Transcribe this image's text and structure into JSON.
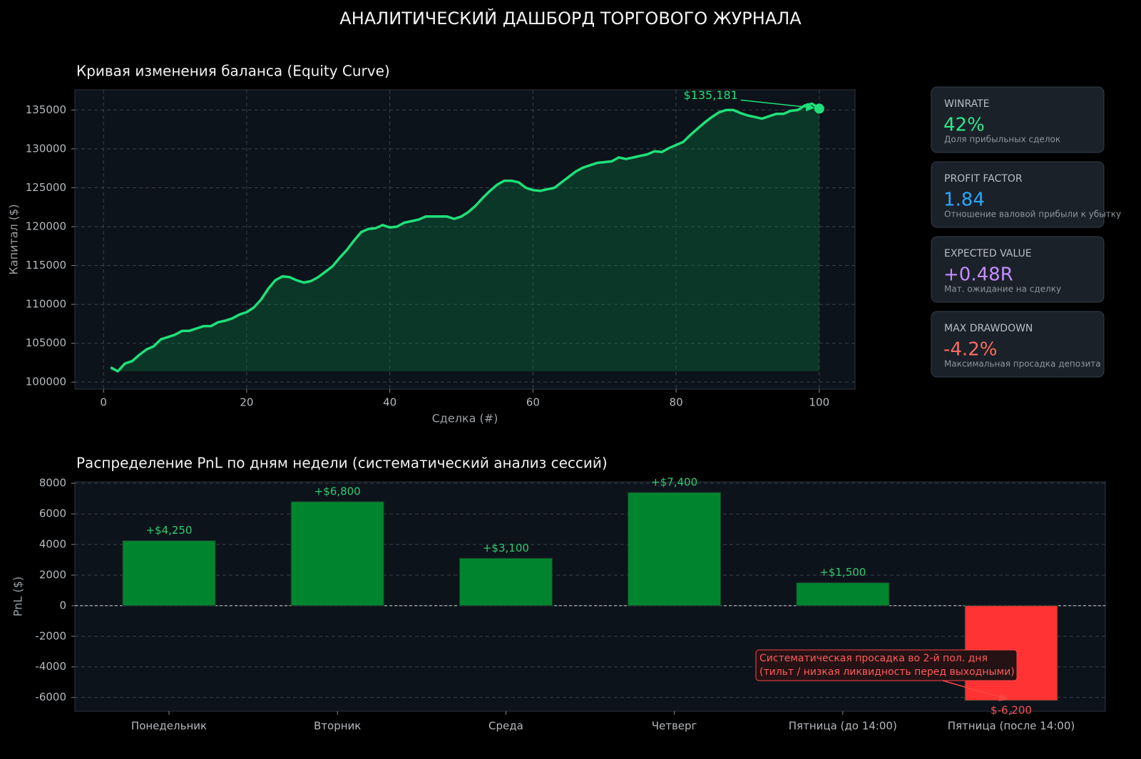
{
  "title": "АНАЛИТИЧЕСКИЙ ДАШБОРД ТОРГОВОГО ЖУРНАЛА",
  "cards": [
    {
      "label": "WINRATE",
      "value": "42%",
      "description": "Доля прибыльных сделок",
      "color": "#2ee88a"
    },
    {
      "label": "PROFIT FACTOR",
      "value": "1.84",
      "description": "Отношение валовой прибыли к убытку",
      "color": "#2aa8ff"
    },
    {
      "label": "EXPECTED VALUE",
      "value": "+0.48R",
      "description": "Мат. ожидание на сделку",
      "color": "#c58cff"
    },
    {
      "label": "MAX DRAWDOWN",
      "value": "-4.2%",
      "description": "Максимальная просадка депозита",
      "color": "#ff6b5e"
    }
  ],
  "chart_data": [
    {
      "type": "line",
      "title": "Кривая изменения баланса (Equity Curve)",
      "xlabel": "Сделка (#)",
      "ylabel": "Капитал ($)",
      "color": "#1fe07a",
      "annotation": "$135,181",
      "grid": true,
      "x": [
        1,
        2,
        3,
        4,
        5,
        6,
        7,
        8,
        9,
        10,
        11,
        12,
        13,
        14,
        15,
        16,
        17,
        18,
        19,
        20,
        21,
        22,
        23,
        24,
        25,
        26,
        27,
        28,
        29,
        30,
        31,
        32,
        33,
        34,
        35,
        36,
        37,
        38,
        39,
        40,
        41,
        42,
        43,
        44,
        45,
        46,
        47,
        48,
        49,
        50,
        51,
        52,
        53,
        54,
        55,
        56,
        57,
        58,
        59,
        60,
        61,
        62,
        63,
        64,
        65,
        66,
        67,
        68,
        69,
        70,
        71,
        72,
        73,
        74,
        75,
        76,
        77,
        78,
        79,
        80,
        81,
        82,
        83,
        84,
        85,
        86,
        87,
        88,
        89,
        90,
        91,
        92,
        93,
        94,
        95,
        96,
        97,
        98,
        99,
        100
      ],
      "values": [
        101900,
        101400,
        102400,
        102700,
        103500,
        104200,
        104600,
        105500,
        105800,
        106100,
        106600,
        106600,
        106900,
        107200,
        107200,
        107700,
        107900,
        108200,
        108700,
        109000,
        109600,
        110600,
        112000,
        113100,
        113600,
        113500,
        113100,
        112800,
        113000,
        113500,
        114200,
        114900,
        116000,
        117000,
        118200,
        119300,
        119700,
        119800,
        120200,
        119900,
        120000,
        120500,
        120700,
        120900,
        121300,
        121300,
        121300,
        121300,
        121000,
        121300,
        121900,
        122700,
        123700,
        124600,
        125400,
        125900,
        125900,
        125700,
        125000,
        124700,
        124600,
        124800,
        125000,
        125700,
        126400,
        127100,
        127600,
        127900,
        128200,
        128300,
        128400,
        128900,
        128700,
        128900,
        129100,
        129300,
        129700,
        129600,
        130100,
        130500,
        130900,
        131800,
        132600,
        133400,
        134100,
        134700,
        135000,
        135000,
        134600,
        134300,
        134100,
        133900,
        134200,
        134500,
        134500,
        134900,
        135000,
        135600,
        135800,
        135181
      ],
      "xlim": [
        -4,
        105
      ],
      "xticks": [
        0,
        20,
        40,
        60,
        80,
        100
      ],
      "ylim": [
        99100,
        137600
      ],
      "yticks": [
        100000,
        105000,
        110000,
        115000,
        120000,
        125000,
        130000,
        135000
      ]
    },
    {
      "type": "bar",
      "title": "Распределение PnL по дням недели (систематический анализ сессий)",
      "ylabel": "PnL ($)",
      "grid": true,
      "categories": [
        "Понедельник",
        "Вторник",
        "Среда",
        "Четверг",
        "Пятница (до 14:00)",
        "Пятница (после 14:00)"
      ],
      "values": [
        4250,
        6800,
        3100,
        7400,
        1500,
        -6200
      ],
      "value_labels": [
        "+$4,250",
        "+$6,800",
        "+$3,100",
        "+$7,400",
        "+$1,500",
        "$-6,200"
      ],
      "colors": [
        "#00852f",
        "#00852f",
        "#00852f",
        "#00852f",
        "#00852f",
        "#ff3333"
      ],
      "annotation": [
        "Систематическая просадка во 2-й пол. дня",
        "(тильт / низкая ликвидность перед выходными)"
      ],
      "ylim": [
        -6900,
        8100
      ],
      "yticks": [
        -6000,
        -4000,
        -2000,
        0,
        2000,
        4000,
        6000,
        8000
      ]
    }
  ]
}
